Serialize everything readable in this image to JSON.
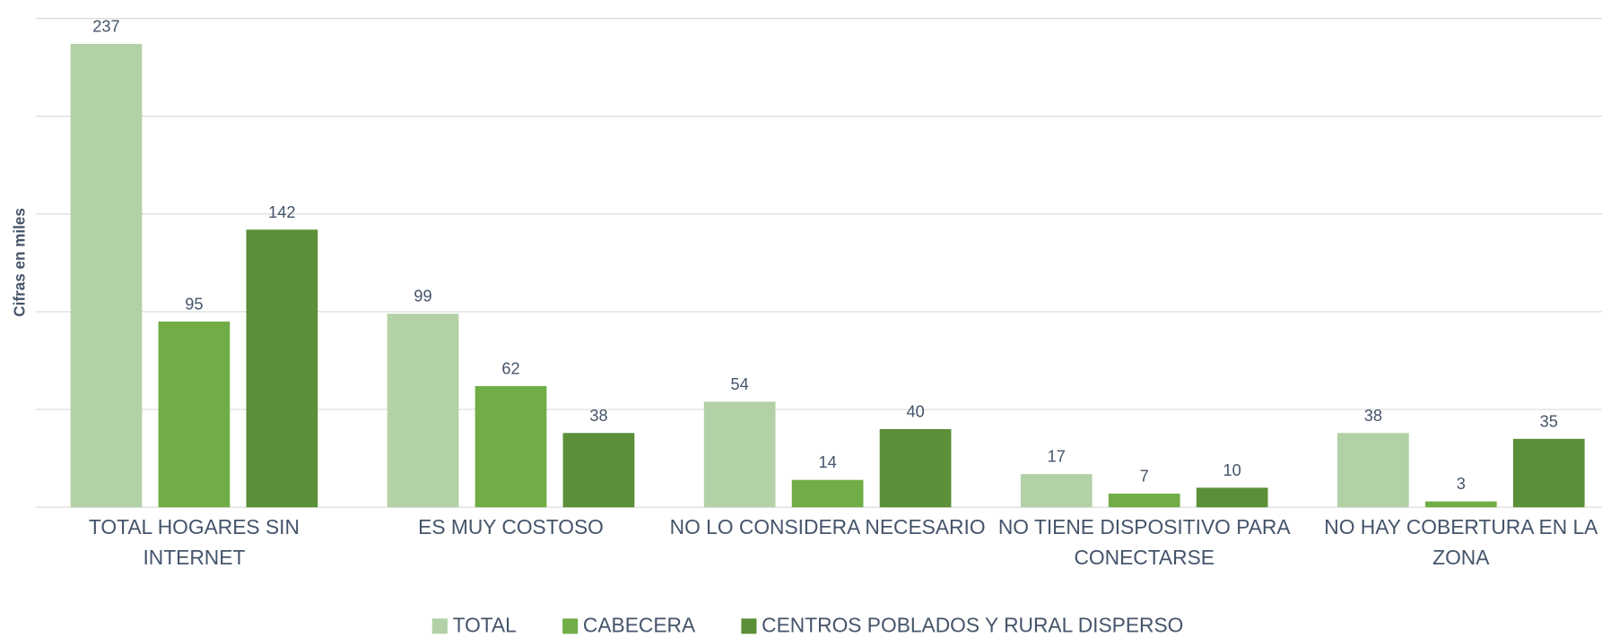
{
  "chart_data": {
    "type": "bar",
    "y_label": "Cifras en miles",
    "categories": [
      "TOTAL HOGARES SIN INTERNET",
      "ES MUY COSTOSO",
      "NO LO CONSIDERA NECESARIO",
      "NO TIENE DISPOSITIVO PARA CONECTARSE",
      "NO HAY COBERTURA EN LA ZONA"
    ],
    "series": [
      {
        "name": "TOTAL",
        "color": "#b3d1a7",
        "values": [
          237,
          99,
          54,
          17,
          38
        ]
      },
      {
        "name": "CABECERA",
        "color": "#70ad47",
        "values": [
          95,
          62,
          14,
          7,
          3
        ]
      },
      {
        "name": "CENTROS POBLADOS Y RURAL DISPERSO",
        "color": "#5b8f38",
        "values": [
          142,
          38,
          40,
          10,
          35
        ]
      }
    ],
    "ylim": [
      0,
      250
    ],
    "yticks": [
      0,
      50,
      100,
      150,
      200,
      250
    ],
    "grid": true,
    "legend": "bottom"
  }
}
